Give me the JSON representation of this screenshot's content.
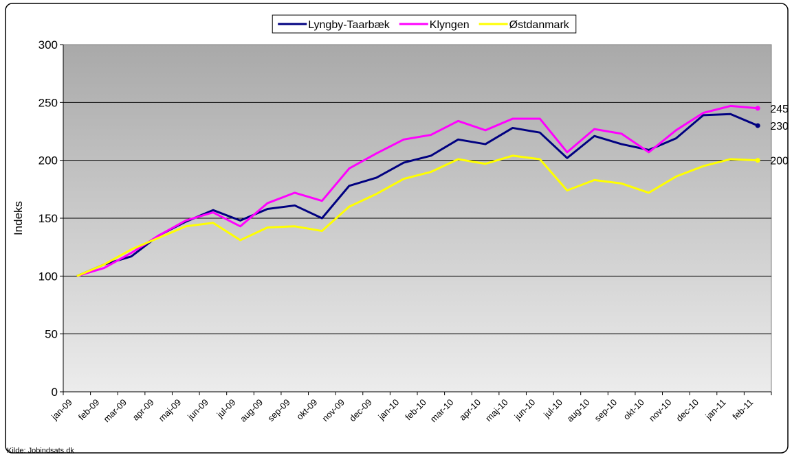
{
  "chart_data": {
    "type": "line",
    "y_label": "Indeks",
    "source": "Kilde: Jobindsats.dk",
    "categories": [
      "jan-09",
      "feb-09",
      "mar-09",
      "apr-09",
      "maj-09",
      "jun-09",
      "jul-09",
      "aug-09",
      "sep-09",
      "okt-09",
      "nov-09",
      "dec-09",
      "jan-10",
      "feb-10",
      "mar-10",
      "apr-10",
      "maj-10",
      "jun-10",
      "jul-10",
      "aug-10",
      "sep-10",
      "okt-10",
      "nov-10",
      "dec-10",
      "jan-11",
      "feb-11"
    ],
    "series": [
      {
        "name": "Lyngby-Taarbæk",
        "color": "#000080",
        "values": [
          100,
          110,
          117,
          135,
          147,
          157,
          148,
          158,
          161,
          150,
          178,
          185,
          198,
          204,
          218,
          214,
          228,
          224,
          202,
          221,
          214,
          209,
          219,
          239,
          240,
          230
        ]
      },
      {
        "name": "Klyngen",
        "color": "#ff00ff",
        "values": [
          100,
          107,
          120,
          135,
          148,
          155,
          143,
          163,
          172,
          165,
          193,
          206,
          218,
          222,
          234,
          226,
          236,
          236,
          207,
          227,
          223,
          207,
          226,
          241,
          247,
          245
        ]
      },
      {
        "name": "Østdanmark",
        "color": "#ffff00",
        "values": [
          100,
          110,
          123,
          133,
          143,
          146,
          131,
          142,
          143,
          139,
          160,
          171,
          184,
          190,
          201,
          197,
          204,
          201,
          174,
          183,
          180,
          172,
          186,
          195,
          201,
          200
        ]
      }
    ],
    "ylim": [
      0,
      300
    ],
    "yticks": [
      0,
      50,
      100,
      150,
      200,
      250,
      300
    ],
    "grid": true,
    "legend": "top"
  }
}
